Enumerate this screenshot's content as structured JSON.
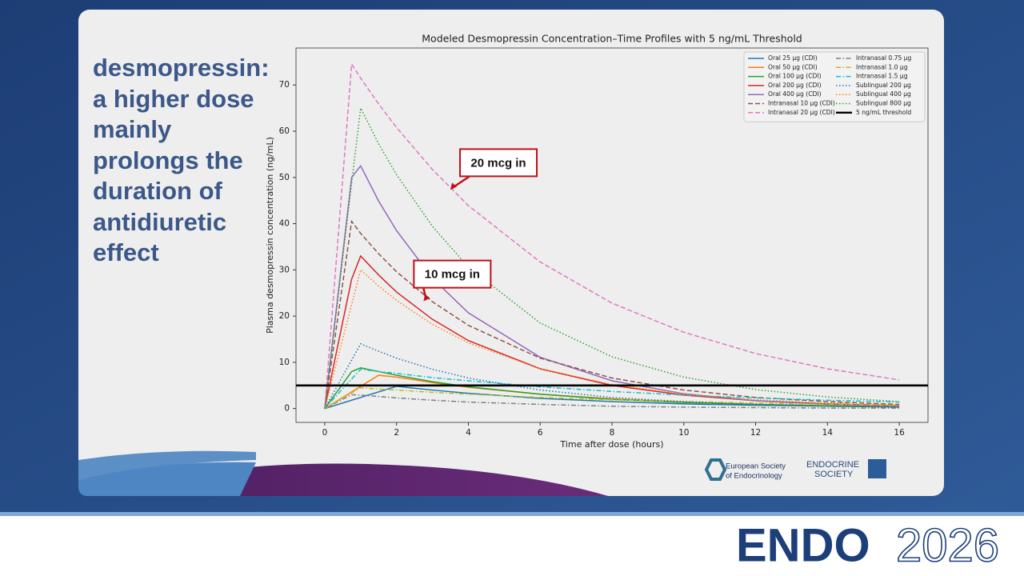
{
  "slide": {
    "heading": "desmopressin: a higher dose mainly prolongs the duration of antidiuretic effect",
    "logos": {
      "ese": [
        "European Society",
        "of Endocrinology"
      ],
      "endocrine_society": [
        "ENDOCRINE",
        "SOCIETY"
      ],
      "endo": "ENDO",
      "year": "2026"
    }
  },
  "chart_data": {
    "type": "line",
    "title": "Modeled Desmopressin Concentration–Time Profiles with 5 ng/mL Threshold",
    "x_label": "Time after dose (hours)",
    "y_label": "Plasma desmopressin concentration (ng/mL)",
    "x": [
      0,
      0.5,
      0.75,
      1,
      1.5,
      2,
      3,
      4,
      6,
      8,
      10,
      12,
      14,
      16
    ],
    "series": [
      {
        "name": "Oral 25 µg (CDI)",
        "color": "#1f77b4",
        "style": "solid",
        "values": [
          0,
          1.2,
          1.8,
          2.4,
          3.6,
          4.8,
          4.0,
          3.3,
          2.2,
          1.5,
          1.0,
          0.7,
          0.5,
          0.3
        ]
      },
      {
        "name": "Oral 50 µg (CDI)",
        "color": "#ff7f0e",
        "style": "solid",
        "values": [
          0,
          2.4,
          3.6,
          4.8,
          7.2,
          6.8,
          5.6,
          4.6,
          3.1,
          2.1,
          1.4,
          0.9,
          0.6,
          0.4
        ]
      },
      {
        "name": "Oral 100 µg (CDI)",
        "color": "#2ca02c",
        "style": "solid",
        "values": [
          0,
          5.3,
          8,
          8.8,
          8.0,
          7.2,
          5.8,
          4.7,
          3.1,
          2.0,
          1.3,
          0.9,
          0.6,
          0.4
        ]
      },
      {
        "name": "Oral 200 µg (CDI)",
        "color": "#d62728",
        "style": "solid",
        "values": [
          0,
          18.7,
          28,
          33,
          28.9,
          25.2,
          19.3,
          14.7,
          8.6,
          5.0,
          2.9,
          1.7,
          1.0,
          0.6
        ]
      },
      {
        "name": "Oral 400 µg (CDI)",
        "color": "#9467bd",
        "style": "solid",
        "values": [
          0,
          33.3,
          50,
          52.5,
          44.9,
          38.5,
          28.2,
          20.7,
          11.1,
          6.0,
          3.2,
          1.7,
          0.9,
          0.5
        ]
      },
      {
        "name": "Intranasal 10 µg (CDI)",
        "color": "#8c564b",
        "style": "dashed",
        "values": [
          0,
          27,
          40.5,
          37.9,
          33.5,
          29.6,
          23.1,
          18.0,
          10.9,
          6.6,
          4.0,
          2.4,
          1.5,
          0.9
        ]
      },
      {
        "name": "Intranasal 20 µg (CDI)",
        "color": "#e377c2",
        "style": "dashed",
        "values": [
          0,
          49.7,
          74.5,
          71.5,
          65.9,
          60.8,
          51.7,
          43.9,
          31.7,
          22.8,
          16.5,
          11.9,
          8.6,
          6.2
        ]
      },
      {
        "name": "Intranasal 0.75 µg",
        "color": "#7f7f7f",
        "style": "dashdot",
        "values": [
          0,
          2.0,
          3.0,
          2.9,
          2.6,
          2.3,
          1.8,
          1.4,
          0.9,
          0.5,
          0.3,
          0.2,
          0.1,
          0.1
        ]
      },
      {
        "name": "Intranasal 1.0 µg",
        "color": "#bcbd22",
        "style": "dashdot",
        "values": [
          0,
          2.3,
          3.4,
          4.5,
          4.2,
          4.0,
          3.5,
          3.1,
          2.4,
          1.9,
          1.5,
          1.2,
          0.9,
          0.7
        ]
      },
      {
        "name": "Intranasal 1.5 µg",
        "color": "#17becf",
        "style": "dashdot",
        "values": [
          0,
          4.3,
          6.4,
          8.5,
          8.0,
          7.6,
          6.7,
          6.0,
          4.7,
          3.7,
          2.9,
          2.3,
          1.8,
          1.4
        ]
      },
      {
        "name": "Sublingual 200 µg",
        "color": "#1f77b4",
        "style": "dotted",
        "values": [
          0,
          7,
          10.5,
          14,
          12.4,
          10.9,
          8.5,
          6.6,
          4.0,
          2.4,
          1.5,
          0.9,
          0.5,
          0.3
        ]
      },
      {
        "name": "Sublingual 400 µg",
        "color": "#ff7f0e",
        "style": "dotted",
        "values": [
          0,
          15,
          22.5,
          30,
          26.5,
          23.4,
          18.2,
          14.2,
          8.6,
          5.2,
          3.1,
          1.9,
          1.2,
          0.7
        ]
      },
      {
        "name": "Sublingual 800 µg",
        "color": "#2ca02c",
        "style": "dotted",
        "values": [
          0,
          32.5,
          48.8,
          65,
          57.3,
          50.6,
          39.4,
          30.6,
          18.5,
          11.2,
          6.8,
          4.1,
          2.5,
          1.5
        ]
      }
    ],
    "threshold": {
      "name": "5 ng/mL threshold",
      "value": 5,
      "color": "#000000"
    },
    "annotations": [
      {
        "text": "20 mcg in",
        "x": 3.5,
        "y": 47.3
      },
      {
        "text": "10 mcg in",
        "x": 2.75,
        "y": 23.2
      }
    ],
    "xlim": [
      -0.8,
      16.8
    ],
    "ylim": [
      -3,
      78
    ],
    "xticks": [
      0,
      2,
      4,
      6,
      8,
      10,
      12,
      14,
      16
    ],
    "yticks": [
      0,
      10,
      20,
      30,
      40,
      50,
      60,
      70
    ],
    "grid": false,
    "legend": "upper right"
  }
}
